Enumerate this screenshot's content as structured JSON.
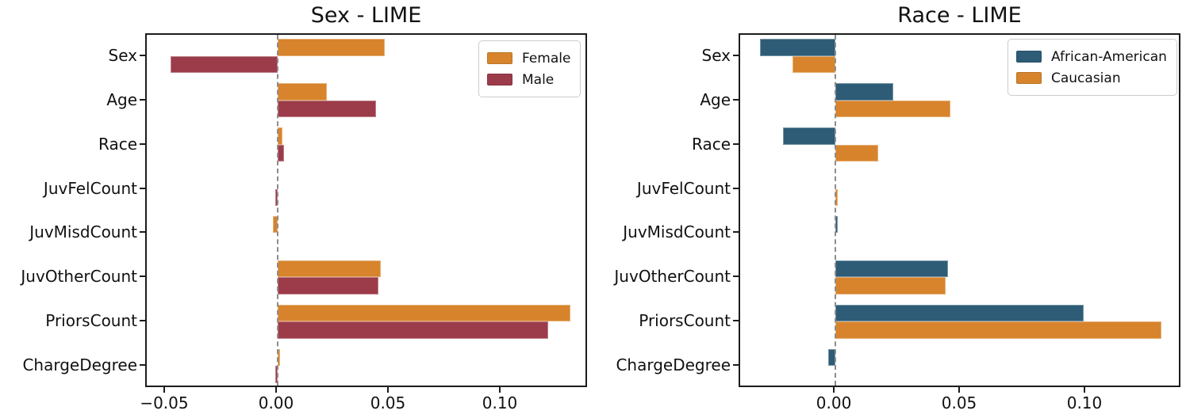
{
  "figure_title": "",
  "chart_data": [
    {
      "type": "bar",
      "orientation": "horizontal",
      "title": "Sex - LIME",
      "categories": [
        "Sex",
        "Age",
        "Race",
        "JuvFelCount",
        "JuvMisdCount",
        "JuvOtherCount",
        "PriorsCount",
        "ChargeDegree"
      ],
      "series": [
        {
          "name": "Female",
          "color": "#D7842D",
          "values": [
            0.048,
            0.022,
            0.002,
            0.0,
            -0.002,
            0.046,
            0.131,
            0.001
          ]
        },
        {
          "name": "Male",
          "color": "#9C3B49",
          "values": [
            -0.048,
            0.044,
            0.003,
            -0.001,
            0.0,
            0.045,
            0.121,
            -0.001
          ]
        }
      ],
      "xlabel": "",
      "ylabel": "",
      "xlim": [
        -0.0585,
        0.139
      ],
      "xticks": [
        -0.05,
        0.0,
        0.05,
        0.1
      ],
      "xtick_labels": [
        "−0.05",
        "0.00",
        "0.05",
        "0.10"
      ],
      "zero_line": true,
      "grid": false,
      "legend_position": "upper-right"
    },
    {
      "type": "bar",
      "orientation": "horizontal",
      "title": "Race - LIME",
      "categories": [
        "Sex",
        "Age",
        "Race",
        "JuvFelCount",
        "JuvMisdCount",
        "JuvOtherCount",
        "PriorsCount",
        "ChargeDegree"
      ],
      "series": [
        {
          "name": "African-American",
          "color": "#2E5C77",
          "values": [
            -0.03,
            0.023,
            -0.021,
            0.0,
            0.001,
            0.045,
            0.099,
            -0.003
          ]
        },
        {
          "name": "Caucasian",
          "color": "#D7842D",
          "values": [
            -0.017,
            0.046,
            0.017,
            0.001,
            0.0,
            0.044,
            0.13,
            0.0
          ]
        }
      ],
      "xlabel": "",
      "ylabel": "",
      "xlim": [
        -0.038,
        0.1383
      ],
      "xticks": [
        0.0,
        0.05,
        0.1
      ],
      "xtick_labels": [
        "0.00",
        "0.05",
        "0.10"
      ],
      "zero_line": true,
      "grid": false,
      "legend_position": "upper-right"
    }
  ]
}
